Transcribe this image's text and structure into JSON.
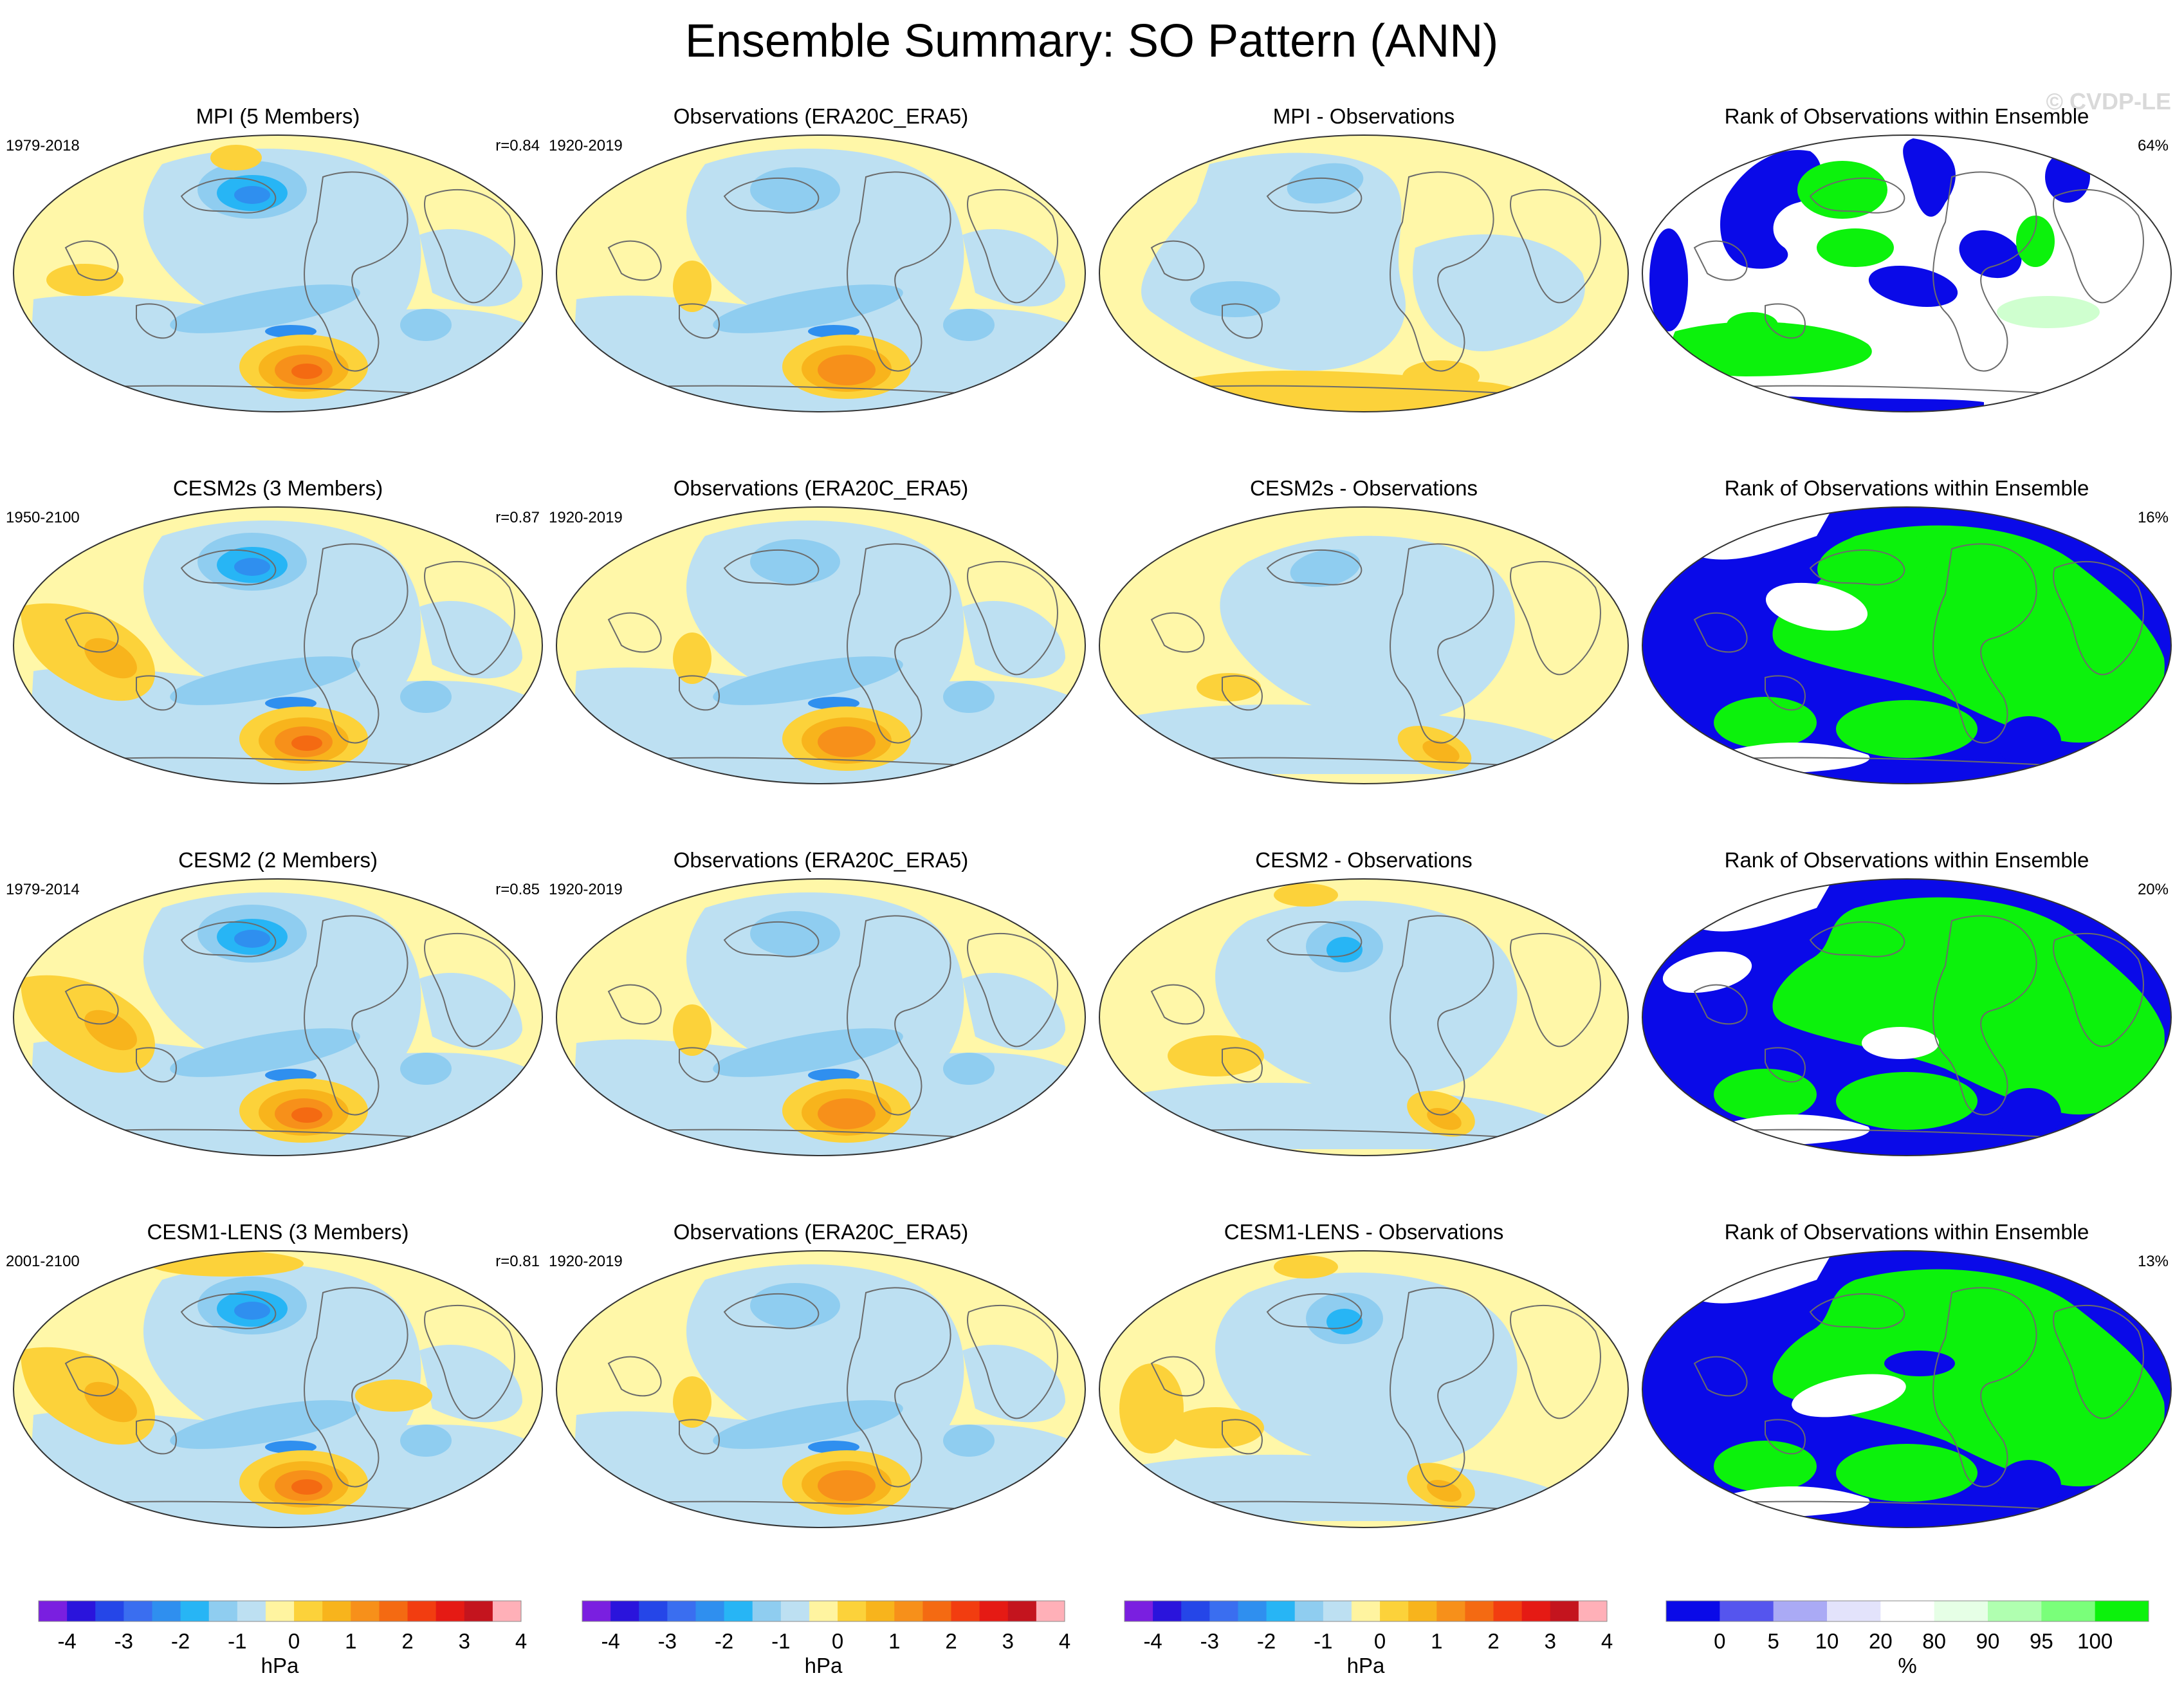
{
  "figure_title": "Ensemble Summary: SO Pattern (ANN)",
  "watermark": "© CVDP-LE",
  "colors": {
    "map_ocean_neutral": "#fff7a8",
    "blue_scale": [
      "#7a1fe0",
      "#2a14dc",
      "#2546e8",
      "#3a6ef0",
      "#2f8fef",
      "#27b5f5",
      "#8fcdf0",
      "#bde0f2"
    ],
    "warm_scale": [
      "#fff4a0",
      "#fcd23a",
      "#f8b41c",
      "#f7901a",
      "#f46a12",
      "#f23d10",
      "#e51a14",
      "#c4141e",
      "#ffb0b8"
    ],
    "rank_blue": "#0a0ae8",
    "rank_green": "#0cf20c",
    "rank_lightgreen": "#cfffcf",
    "coastline": "#6b6b6b"
  },
  "chart_data": [
    {
      "type": "heatmap",
      "title": "MPI (5 Members)",
      "period": "1979-2018",
      "stat": "r=0.84",
      "units": "hPa"
    },
    {
      "type": "heatmap",
      "title": "Observations (ERA20C_ERA5)",
      "period": "1920-2019",
      "stat": "",
      "units": "hPa"
    },
    {
      "type": "heatmap",
      "title": "MPI - Observations",
      "period": "",
      "stat": "",
      "units": "hPa"
    },
    {
      "type": "heatmap",
      "title": "Rank of Observations within Ensemble",
      "period": "",
      "stat": "64%",
      "units": "%"
    },
    {
      "type": "heatmap",
      "title": "CESM2s (3 Members)",
      "period": "1950-2100",
      "stat": "r=0.87",
      "units": "hPa"
    },
    {
      "type": "heatmap",
      "title": "Observations (ERA20C_ERA5)",
      "period": "1920-2019",
      "stat": "",
      "units": "hPa"
    },
    {
      "type": "heatmap",
      "title": "CESM2s - Observations",
      "period": "",
      "stat": "",
      "units": "hPa"
    },
    {
      "type": "heatmap",
      "title": "Rank of Observations within Ensemble",
      "period": "",
      "stat": "16%",
      "units": "%"
    },
    {
      "type": "heatmap",
      "title": "CESM2 (2 Members)",
      "period": "1979-2014",
      "stat": "r=0.85",
      "units": "hPa"
    },
    {
      "type": "heatmap",
      "title": "Observations (ERA20C_ERA5)",
      "period": "1920-2019",
      "stat": "",
      "units": "hPa"
    },
    {
      "type": "heatmap",
      "title": "CESM2 - Observations",
      "period": "",
      "stat": "",
      "units": "hPa"
    },
    {
      "type": "heatmap",
      "title": "Rank of Observations within Ensemble",
      "period": "",
      "stat": "20%",
      "units": "%"
    },
    {
      "type": "heatmap",
      "title": "CESM1-LENS (3 Members)",
      "period": "2001-2100",
      "stat": "r=0.81",
      "units": "hPa"
    },
    {
      "type": "heatmap",
      "title": "Observations (ERA20C_ERA5)",
      "period": "1920-2019",
      "stat": "",
      "units": "hPa"
    },
    {
      "type": "heatmap",
      "title": "CESM1-LENS - Observations",
      "period": "",
      "stat": "",
      "units": "hPa"
    },
    {
      "type": "heatmap",
      "title": "Rank of Observations within Ensemble",
      "period": "",
      "stat": "13%",
      "units": "%"
    }
  ],
  "colorbars": [
    {
      "label": "hPa",
      "ticks": [
        "-4",
        "-3",
        "-2",
        "-1",
        "0",
        "1",
        "2",
        "3",
        "4"
      ]
    },
    {
      "label": "hPa",
      "ticks": [
        "-4",
        "-3",
        "-2",
        "-1",
        "0",
        "1",
        "2",
        "3",
        "4"
      ]
    },
    {
      "label": "hPa",
      "ticks": [
        "-4",
        "-3",
        "-2",
        "-1",
        "0",
        "1",
        "2",
        "3",
        "4"
      ]
    },
    {
      "label": "%",
      "ticks": [
        "0",
        "5",
        "10",
        "20",
        "80",
        "90",
        "95",
        "100"
      ],
      "colors": [
        "#0a0ae8",
        "#5555ee",
        "#aaaaf5",
        "#e3e3fb",
        "#ffffff",
        "#e6ffe6",
        "#b0ffb0",
        "#7aff7a",
        "#0cf20c"
      ]
    }
  ]
}
